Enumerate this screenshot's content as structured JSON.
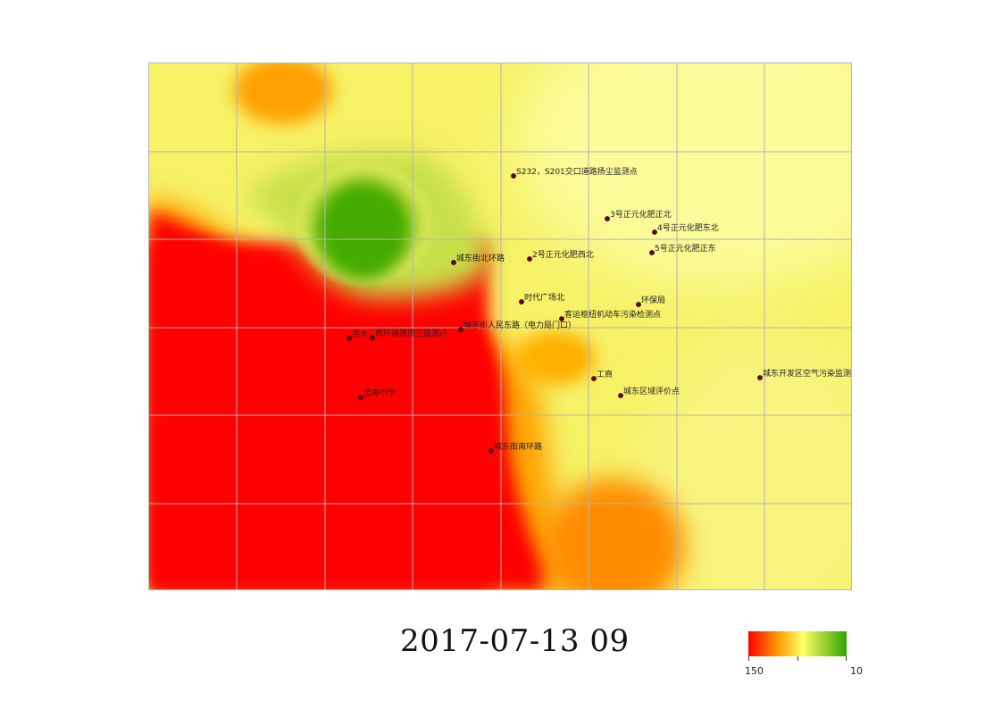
{
  "timestamp": "2017-07-13 09",
  "colors": {
    "high": "#ff0000",
    "mid_orange": "#ff9a00",
    "mid_yellow": "#ffff66",
    "low": "#33a600"
  },
  "legend": {
    "max_label": "150",
    "min_label": "10"
  },
  "stations": [
    {
      "name": "S232，S201交口道路扬尘监测点"
    },
    {
      "name": "3号正元化肥正北"
    },
    {
      "name": "4号正元化肥东北"
    },
    {
      "name": "5号正元化肥正东"
    },
    {
      "name": "城东街北环路"
    },
    {
      "name": "2号正元化肥西北"
    },
    {
      "name": "时代广场北"
    },
    {
      "name": "环保局"
    },
    {
      "name": "客运枢纽机动车污染检测点"
    },
    {
      "name": "城东街人民东路（电力局门口）"
    },
    {
      "name": "洪水"
    },
    {
      "name": "西环道路扬尘监测点"
    },
    {
      "name": "工商"
    },
    {
      "name": "城东开发区空气污染监测点"
    },
    {
      "name": "城东区域评价点"
    },
    {
      "name": "灵寿中学"
    },
    {
      "name": "城东街南环路"
    }
  ]
}
